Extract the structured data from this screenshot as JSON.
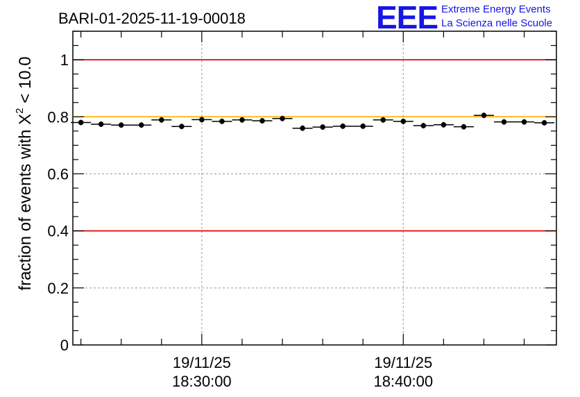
{
  "logo": {
    "mark": "EEE",
    "line1": "Extreme Energy Events",
    "line2": "La Scienza nelle Scuole",
    "color": "#1515e6"
  },
  "chart_data": {
    "type": "scatter",
    "title": "BARI-01-2025-11-19-00018",
    "ylabel_main": "fraction of events with ",
    "ylabel_symbol": "X",
    "ylabel_exponent": "2",
    "ylabel_tail": " < 10.0",
    "xlabel": "",
    "x_unit": "minutes after 18:30:00",
    "xlim": [
      -6.4,
      17.6
    ],
    "ylim": [
      0,
      1.1
    ],
    "y_ticks": [
      0,
      0.2,
      0.4,
      0.6,
      0.8,
      1
    ],
    "y_tick_labels": [
      "0",
      "0.2",
      "0.4",
      "0.6",
      "0.8",
      "1"
    ],
    "x_major_ticks": [
      {
        "x": 0,
        "date": "19/11/25",
        "time": "18:30:00"
      },
      {
        "x": 10,
        "date": "19/11/25",
        "time": "18:40:00"
      }
    ],
    "x_minor_step": 2,
    "grid": true,
    "reference_lines": [
      {
        "y": 1.0,
        "color": "#e00000",
        "name": "upper-limit-line"
      },
      {
        "y": 0.8,
        "color": "#ffb400",
        "name": "nominal-line"
      },
      {
        "y": 0.4,
        "color": "#e00000",
        "name": "lower-limit-line"
      }
    ],
    "x_half_width": 0.5,
    "series": [
      {
        "name": "fraction",
        "x": [
          -6.0,
          -5.0,
          -4.0,
          -3.0,
          -2.0,
          -1.0,
          0.0,
          1.0,
          2.0,
          3.0,
          4.0,
          5.0,
          6.0,
          7.0,
          8.0,
          9.0,
          10.0,
          11.0,
          12.0,
          13.0,
          14.0,
          15.0,
          16.0,
          17.0
        ],
        "y": [
          0.78,
          0.774,
          0.771,
          0.771,
          0.789,
          0.766,
          0.79,
          0.784,
          0.789,
          0.786,
          0.794,
          0.76,
          0.764,
          0.767,
          0.767,
          0.789,
          0.784,
          0.769,
          0.772,
          0.765,
          0.805,
          0.782,
          0.782,
          0.779
        ]
      }
    ]
  }
}
